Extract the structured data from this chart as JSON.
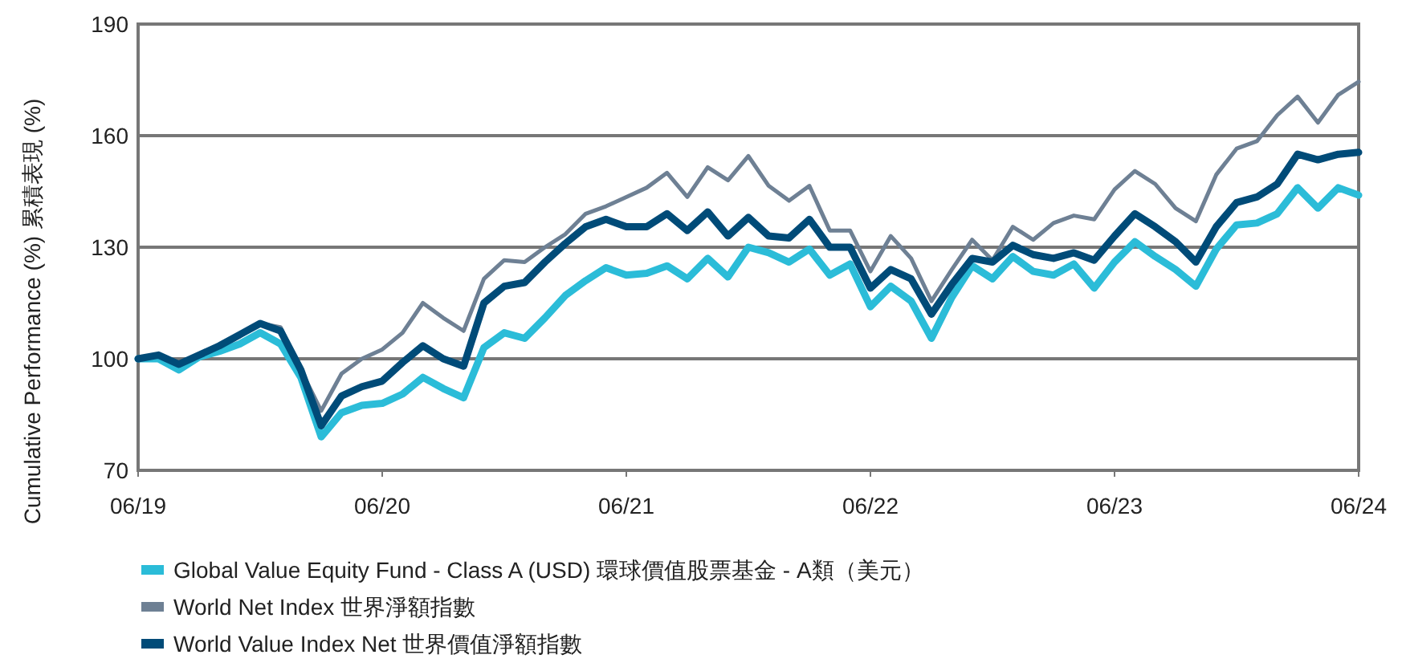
{
  "chart_data": {
    "type": "line",
    "ylabel": "Cumulative Performance (%)  累積表現 (%)",
    "x": [
      "2019-06",
      "2019-07",
      "2019-08",
      "2019-09",
      "2019-10",
      "2019-11",
      "2019-12",
      "2020-01",
      "2020-02",
      "2020-03",
      "2020-04",
      "2020-05",
      "2020-06",
      "2020-07",
      "2020-08",
      "2020-09",
      "2020-10",
      "2020-11",
      "2020-12",
      "2021-01",
      "2021-02",
      "2021-03",
      "2021-04",
      "2021-05",
      "2021-06",
      "2021-07",
      "2021-08",
      "2021-09",
      "2021-10",
      "2021-11",
      "2021-12",
      "2022-01",
      "2022-02",
      "2022-03",
      "2022-04",
      "2022-05",
      "2022-06",
      "2022-07",
      "2022-08",
      "2022-09",
      "2022-10",
      "2022-11",
      "2022-12",
      "2023-01",
      "2023-02",
      "2023-03",
      "2023-04",
      "2023-05",
      "2023-06",
      "2023-07",
      "2023-08",
      "2023-09",
      "2023-10",
      "2023-11",
      "2023-12",
      "2024-01",
      "2024-02",
      "2024-03",
      "2024-04",
      "2024-05",
      "2024-06"
    ],
    "series": [
      {
        "name": "Global Value Equity Fund - Class A (USD) 環球價值股票基金 - A類（美元）",
        "color": "#2bbcd8",
        "values": [
          100,
          100,
          97,
          100.5,
          102,
          104,
          107,
          104,
          95,
          79,
          85.5,
          87.5,
          88,
          90.5,
          95,
          92,
          89.5,
          103,
          107,
          105.5,
          111,
          117,
          121,
          124.5,
          122.5,
          123,
          125,
          121.5,
          127,
          122,
          130,
          128.5,
          126,
          129.5,
          122.5,
          125.5,
          114,
          119.5,
          115.5,
          105.5,
          116.5,
          125,
          121.5,
          127.5,
          123.5,
          122.5,
          125.5,
          119,
          126,
          131.5,
          127.5,
          124,
          119.5,
          129.5,
          136,
          136.5,
          139,
          146,
          140.5,
          146,
          144
        ]
      },
      {
        "name": "World Net Index 世界淨額指數",
        "color": "#6e8094",
        "values": [
          100,
          101,
          98.5,
          101,
          103,
          106,
          109.5,
          108.5,
          97,
          86,
          96,
          100,
          102.5,
          107,
          115,
          111,
          107.5,
          121.5,
          126.5,
          126,
          130,
          133.5,
          139,
          141,
          143.5,
          146,
          150,
          143.5,
          151.5,
          148,
          154.5,
          146.5,
          142.5,
          146.5,
          134.5,
          134.5,
          123.5,
          133,
          127,
          115.5,
          124,
          132,
          126.5,
          135.5,
          132,
          136.5,
          138.5,
          137.5,
          145.5,
          150.5,
          147,
          140.5,
          137,
          149.5,
          156.5,
          158.5,
          165.5,
          170.5,
          163.5,
          171,
          174.5
        ]
      },
      {
        "name": "World Value Index Net 世界價值淨額指數",
        "color": "#004b78",
        "values": [
          100,
          101,
          98.5,
          101,
          103.5,
          106.5,
          109.5,
          107.5,
          97,
          82,
          90,
          92.5,
          94,
          99,
          103.5,
          100,
          98,
          115,
          119.5,
          120.5,
          126,
          131,
          135.5,
          137.5,
          135.5,
          135.5,
          139,
          134.5,
          139.5,
          133,
          138,
          133,
          132.5,
          137.5,
          130,
          130,
          119,
          124,
          121.5,
          112,
          120,
          127,
          126,
          130.5,
          128,
          127,
          128.5,
          126.5,
          133,
          139,
          135.5,
          131.5,
          126,
          135.5,
          142,
          143.5,
          147,
          155,
          153.5,
          155,
          155.5
        ]
      }
    ],
    "xlim": [
      "2019-06",
      "2024-06"
    ],
    "xticks": [
      {
        "value": "2019-06",
        "label": "06/19"
      },
      {
        "value": "2020-06",
        "label": "06/20"
      },
      {
        "value": "2021-06",
        "label": "06/21"
      },
      {
        "value": "2022-06",
        "label": "06/22"
      },
      {
        "value": "2023-06",
        "label": "06/23"
      },
      {
        "value": "2024-06",
        "label": "06/24"
      }
    ],
    "ylim": [
      70,
      190
    ],
    "yticks": [
      70,
      100,
      130,
      160,
      190
    ],
    "grid": "y",
    "legend": "bottom left",
    "marker": "none",
    "line_style": "solid"
  }
}
